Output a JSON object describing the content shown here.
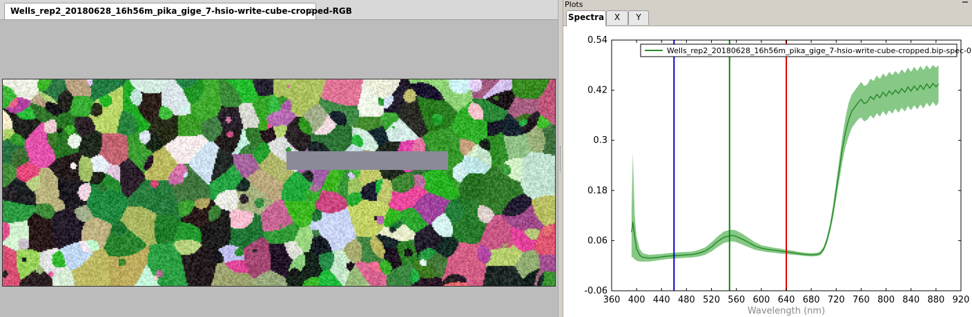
{
  "image_tab": {
    "label": "Wells_rep2_20180628_16h56m_pika_gige_7-hsio-write-cube-cropped-RGB",
    "close": "✕"
  },
  "plots_panel": {
    "title": "Plots",
    "tabs": [
      {
        "label": "Spectra"
      },
      {
        "label": "X"
      },
      {
        "label": "Y"
      }
    ],
    "active_tab": "Spectra"
  },
  "chart_data": {
    "type": "line",
    "xlabel": "Wavelength (nm)",
    "ylabel": "",
    "xlim": [
      360,
      920
    ],
    "ylim": [
      -0.06,
      0.54
    ],
    "x_ticks": [
      "360",
      "400",
      "440",
      "480",
      "520",
      "560",
      "600",
      "640",
      "680",
      "720",
      "760",
      "800",
      "840",
      "880",
      "920"
    ],
    "y_ticks": [
      "0.54",
      "0.42",
      "0.3",
      "0.18",
      "0.06",
      "-0.06"
    ],
    "grid": false,
    "legend_position": "top-right",
    "series": [
      {
        "name": "Wells_rep2_20180628_16h56m_pika_gige_7-hsio-write-cube-cropped.bip-spec-0",
        "color": "#2a8a2a",
        "band_color": "#5fb55f",
        "x": [
          392,
          394,
          397,
          400,
          405,
          410,
          420,
          430,
          440,
          450,
          460,
          470,
          480,
          490,
          500,
          510,
          520,
          530,
          540,
          550,
          555,
          560,
          570,
          580,
          590,
          600,
          610,
          620,
          630,
          640,
          650,
          660,
          670,
          680,
          690,
          695,
          700,
          705,
          710,
          715,
          720,
          725,
          730,
          735,
          740,
          745,
          750,
          755,
          760,
          765,
          770,
          775,
          780,
          785,
          790,
          795,
          800,
          805,
          810,
          815,
          820,
          825,
          830,
          835,
          840,
          845,
          850,
          855,
          860,
          865,
          870,
          875,
          880,
          884
        ],
        "y": [
          0.08,
          0.105,
          0.07,
          0.04,
          0.025,
          0.02,
          0.018,
          0.019,
          0.021,
          0.023,
          0.024,
          0.025,
          0.026,
          0.027,
          0.03,
          0.035,
          0.045,
          0.058,
          0.068,
          0.072,
          0.072,
          0.07,
          0.063,
          0.055,
          0.047,
          0.042,
          0.039,
          0.037,
          0.035,
          0.033,
          0.031,
          0.029,
          0.027,
          0.026,
          0.027,
          0.03,
          0.04,
          0.06,
          0.09,
          0.13,
          0.18,
          0.23,
          0.28,
          0.32,
          0.35,
          0.37,
          0.38,
          0.39,
          0.398,
          0.388,
          0.392,
          0.405,
          0.398,
          0.41,
          0.402,
          0.415,
          0.406,
          0.418,
          0.41,
          0.42,
          0.412,
          0.424,
          0.415,
          0.428,
          0.418,
          0.43,
          0.42,
          0.432,
          0.422,
          0.435,
          0.425,
          0.436,
          0.428,
          0.435
        ],
        "lower": [
          0.02,
          0.02,
          0.015,
          0.012,
          0.01,
          0.01,
          0.01,
          0.012,
          0.014,
          0.016,
          0.017,
          0.018,
          0.019,
          0.02,
          0.022,
          0.026,
          0.034,
          0.045,
          0.054,
          0.058,
          0.058,
          0.056,
          0.05,
          0.044,
          0.038,
          0.035,
          0.032,
          0.031,
          0.029,
          0.028,
          0.026,
          0.025,
          0.023,
          0.022,
          0.023,
          0.026,
          0.035,
          0.052,
          0.08,
          0.115,
          0.16,
          0.205,
          0.25,
          0.285,
          0.31,
          0.33,
          0.34,
          0.35,
          0.355,
          0.345,
          0.35,
          0.36,
          0.352,
          0.365,
          0.357,
          0.37,
          0.36,
          0.372,
          0.364,
          0.376,
          0.366,
          0.378,
          0.369,
          0.382,
          0.372,
          0.384,
          0.374,
          0.386,
          0.376,
          0.39,
          0.38,
          0.392,
          0.382,
          0.39
        ],
        "upper": [
          0.14,
          0.27,
          0.12,
          0.07,
          0.04,
          0.03,
          0.026,
          0.027,
          0.028,
          0.03,
          0.031,
          0.032,
          0.033,
          0.034,
          0.038,
          0.044,
          0.056,
          0.07,
          0.082,
          0.086,
          0.086,
          0.084,
          0.076,
          0.066,
          0.056,
          0.049,
          0.046,
          0.043,
          0.041,
          0.038,
          0.036,
          0.033,
          0.031,
          0.03,
          0.031,
          0.035,
          0.046,
          0.068,
          0.1,
          0.145,
          0.2,
          0.255,
          0.31,
          0.355,
          0.39,
          0.41,
          0.42,
          0.43,
          0.44,
          0.43,
          0.434,
          0.448,
          0.442,
          0.455,
          0.447,
          0.46,
          0.452,
          0.464,
          0.456,
          0.466,
          0.458,
          0.47,
          0.461,
          0.474,
          0.464,
          0.476,
          0.466,
          0.478,
          0.468,
          0.48,
          0.47,
          0.48,
          0.474,
          0.48
        ]
      }
    ],
    "vertical_lines": [
      {
        "x": 460,
        "color": "#0000cc"
      },
      {
        "x": 549,
        "color": "#008800"
      },
      {
        "x": 640,
        "color": "#dd0000"
      }
    ]
  }
}
